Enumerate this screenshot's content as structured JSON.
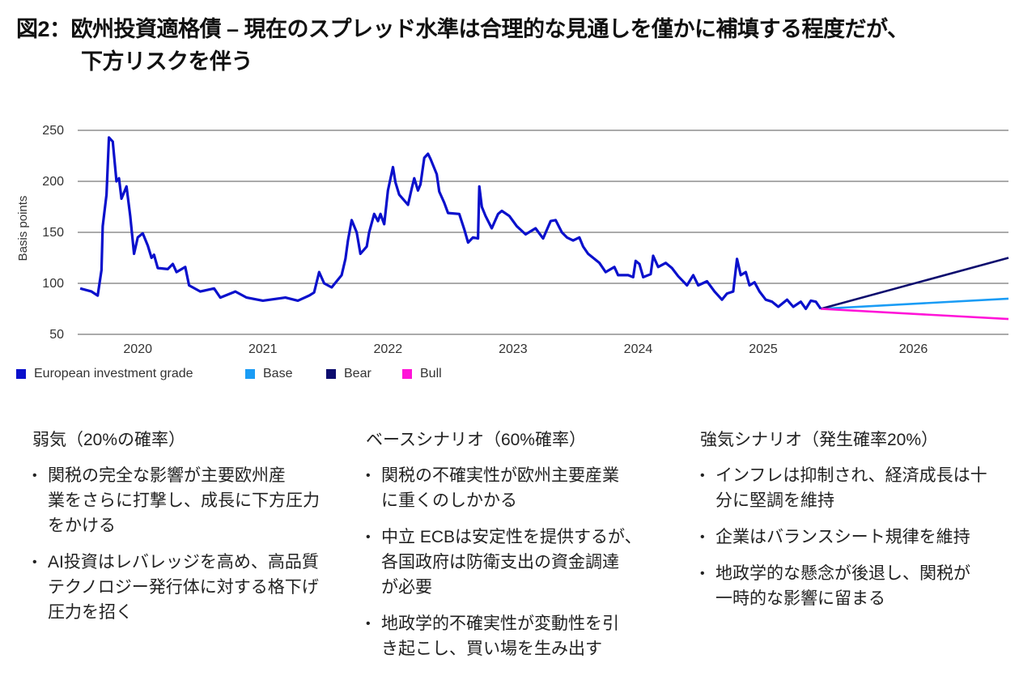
{
  "title": {
    "line1": "図2：欧州投資適格債 – 現在のスプレッド水準は合理的な見通しを僅かに補填する程度だが、",
    "line2": "下方リスクを伴う"
  },
  "chart_data": {
    "type": "line",
    "ylabel": "Basis points",
    "xlabel": "",
    "ylim": [
      50,
      250
    ],
    "xlim": [
      2020.02,
      2027.46
    ],
    "yticks": [
      50,
      100,
      150,
      200,
      250
    ],
    "xticks": [
      {
        "label": "2020",
        "value": 2020.5
      },
      {
        "label": "2021",
        "value": 2021.5
      },
      {
        "label": "2022",
        "value": 2022.5
      },
      {
        "label": "2023",
        "value": 2023.5
      },
      {
        "label": "2024",
        "value": 2024.5
      },
      {
        "label": "2025",
        "value": 2025.5
      },
      {
        "label": "2026",
        "value": 2026.7
      }
    ],
    "grid": "horizontal",
    "legend_position": "bottom-left",
    "series": [
      {
        "name": "European investment grade",
        "color": "#0a10cc",
        "points": [
          [
            2020.04,
            95
          ],
          [
            2020.13,
            92
          ],
          [
            2020.18,
            88
          ],
          [
            2020.21,
            113
          ],
          [
            2020.22,
            156
          ],
          [
            2020.25,
            187
          ],
          [
            2020.27,
            243
          ],
          [
            2020.3,
            239
          ],
          [
            2020.33,
            200
          ],
          [
            2020.35,
            203
          ],
          [
            2020.37,
            183
          ],
          [
            2020.41,
            195
          ],
          [
            2020.44,
            166
          ],
          [
            2020.47,
            129
          ],
          [
            2020.5,
            145
          ],
          [
            2020.54,
            149
          ],
          [
            2020.58,
            137
          ],
          [
            2020.61,
            125
          ],
          [
            2020.63,
            128
          ],
          [
            2020.66,
            115
          ],
          [
            2020.74,
            114
          ],
          [
            2020.78,
            119
          ],
          [
            2020.81,
            111
          ],
          [
            2020.88,
            116
          ],
          [
            2020.91,
            98
          ],
          [
            2021.0,
            92
          ],
          [
            2021.11,
            95
          ],
          [
            2021.16,
            86
          ],
          [
            2021.28,
            92
          ],
          [
            2021.37,
            86
          ],
          [
            2021.5,
            83
          ],
          [
            2021.68,
            86
          ],
          [
            2021.78,
            83
          ],
          [
            2021.87,
            88
          ],
          [
            2021.91,
            91
          ],
          [
            2021.95,
            111
          ],
          [
            2021.99,
            100
          ],
          [
            2022.05,
            96
          ],
          [
            2022.13,
            108
          ],
          [
            2022.16,
            124
          ],
          [
            2022.18,
            142
          ],
          [
            2022.21,
            162
          ],
          [
            2022.25,
            150
          ],
          [
            2022.28,
            129
          ],
          [
            2022.33,
            136
          ],
          [
            2022.35,
            150
          ],
          [
            2022.39,
            168
          ],
          [
            2022.42,
            161
          ],
          [
            2022.44,
            168
          ],
          [
            2022.47,
            158
          ],
          [
            2022.5,
            191
          ],
          [
            2022.54,
            214
          ],
          [
            2022.56,
            199
          ],
          [
            2022.59,
            187
          ],
          [
            2022.66,
            177
          ],
          [
            2022.69,
            193
          ],
          [
            2022.71,
            203
          ],
          [
            2022.74,
            191
          ],
          [
            2022.76,
            197
          ],
          [
            2022.79,
            223
          ],
          [
            2022.82,
            227
          ],
          [
            2022.84,
            222
          ],
          [
            2022.89,
            207
          ],
          [
            2022.91,
            190
          ],
          [
            2022.95,
            179
          ],
          [
            2022.98,
            169
          ],
          [
            2023.07,
            168
          ],
          [
            2023.11,
            153
          ],
          [
            2023.14,
            140
          ],
          [
            2023.18,
            145
          ],
          [
            2023.22,
            144
          ],
          [
            2023.23,
            195
          ],
          [
            2023.25,
            175
          ],
          [
            2023.28,
            166
          ],
          [
            2023.33,
            154
          ],
          [
            2023.38,
            168
          ],
          [
            2023.41,
            171
          ],
          [
            2023.47,
            166
          ],
          [
            2023.53,
            156
          ],
          [
            2023.6,
            148
          ],
          [
            2023.68,
            154
          ],
          [
            2023.74,
            144
          ],
          [
            2023.8,
            161
          ],
          [
            2023.84,
            162
          ],
          [
            2023.89,
            150
          ],
          [
            2023.93,
            145
          ],
          [
            2023.98,
            142
          ],
          [
            2024.03,
            145
          ],
          [
            2024.06,
            136
          ],
          [
            2024.1,
            129
          ],
          [
            2024.15,
            124
          ],
          [
            2024.19,
            120
          ],
          [
            2024.24,
            111
          ],
          [
            2024.31,
            116
          ],
          [
            2024.34,
            108
          ],
          [
            2024.42,
            108
          ],
          [
            2024.46,
            106
          ],
          [
            2024.48,
            122
          ],
          [
            2024.51,
            119
          ],
          [
            2024.54,
            106
          ],
          [
            2024.6,
            109
          ],
          [
            2024.62,
            127
          ],
          [
            2024.66,
            116
          ],
          [
            2024.72,
            120
          ],
          [
            2024.77,
            115
          ],
          [
            2024.82,
            107
          ],
          [
            2024.89,
            98
          ],
          [
            2024.94,
            108
          ],
          [
            2024.98,
            98
          ],
          [
            2025.05,
            102
          ],
          [
            2025.11,
            92
          ],
          [
            2025.17,
            84
          ],
          [
            2025.21,
            90
          ],
          [
            2025.26,
            92
          ],
          [
            2025.29,
            124
          ],
          [
            2025.32,
            108
          ],
          [
            2025.36,
            111
          ],
          [
            2025.39,
            98
          ],
          [
            2025.43,
            101
          ],
          [
            2025.47,
            92
          ],
          [
            2025.52,
            84
          ],
          [
            2025.57,
            82
          ],
          [
            2025.62,
            77
          ],
          [
            2025.69,
            84
          ],
          [
            2025.74,
            77
          ],
          [
            2025.8,
            82
          ],
          [
            2025.84,
            75
          ],
          [
            2025.88,
            83
          ],
          [
            2025.92,
            82
          ],
          [
            2025.96,
            75
          ]
        ]
      },
      {
        "name": "Base",
        "color": "#1a9cf5",
        "points": [
          [
            2025.96,
            75
          ],
          [
            2027.46,
            85
          ]
        ]
      },
      {
        "name": "Bear",
        "color": "#0c0c6e",
        "points": [
          [
            2025.96,
            75
          ],
          [
            2027.46,
            125
          ]
        ]
      },
      {
        "name": "Bull",
        "color": "#ff14d8",
        "points": [
          [
            2025.96,
            75
          ],
          [
            2027.46,
            65
          ]
        ]
      }
    ]
  },
  "scenarios": [
    {
      "heading": "弱気（20%の確率）",
      "bullets": [
        [
          "関税の完全な影響が主要欧州産",
          "業をさらに打撃し、成長に下方圧力",
          "をかける"
        ],
        [
          "AI投資はレバレッジを高め、高品質",
          "テクノロジー発行体に対する格下げ",
          "圧力を招く"
        ]
      ]
    },
    {
      "heading": "ベースシナリオ（60%確率）",
      "bullets": [
        [
          "関税の不確実性が欧州主要産業",
          "に重くのしかかる"
        ],
        [
          "中立 ECBは安定性を提供するが、",
          "各国政府は防衛支出の資金調達",
          "が必要"
        ],
        [
          "地政学的不確実性が変動性を引",
          "き起こし、買い場を生み出す"
        ]
      ]
    },
    {
      "heading": "強気シナリオ（発生確率20%）",
      "bullets": [
        [
          "インフレは抑制され、経済成長は十",
          "分に堅調を維持"
        ],
        [
          "企業はバランスシート規律を維持"
        ],
        [
          "地政学的な懸念が後退し、関税が",
          "一時的な影響に留まる"
        ]
      ]
    }
  ],
  "bullet_glyph": "•"
}
